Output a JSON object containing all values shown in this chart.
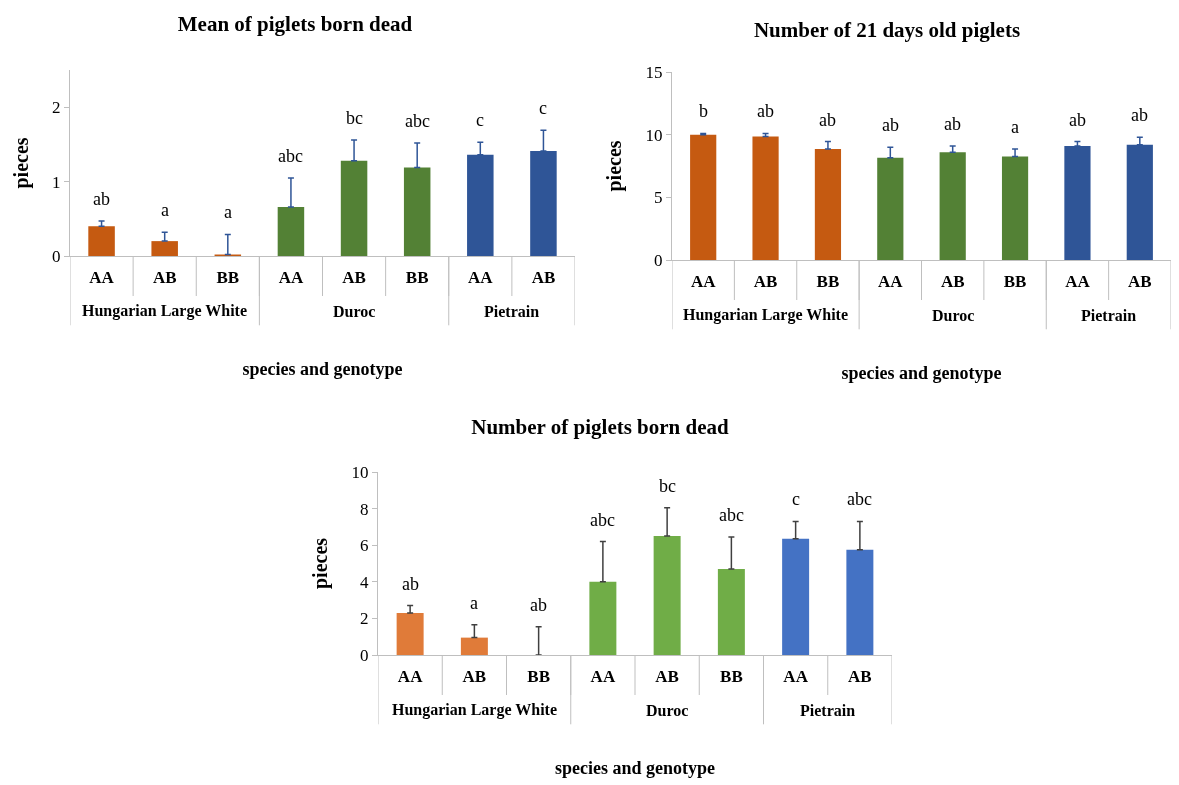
{
  "chart_data": [
    {
      "type": "bar",
      "title": "Mean of piglets born dead",
      "xlabel": "species and genotype",
      "ylabel": "pieces",
      "categories": [
        "AA",
        "AB",
        "BB",
        "AA",
        "AB",
        "BB",
        "AA",
        "AB"
      ],
      "values": [
        0.4,
        0.2,
        0.02,
        0.66,
        1.28,
        1.19,
        1.36,
        1.41
      ],
      "errors": [
        [
          0.4,
          0.47
        ],
        [
          0.2,
          0.32
        ],
        [
          0.02,
          0.29
        ],
        [
          0.66,
          1.05
        ],
        [
          1.28,
          1.56
        ],
        [
          1.19,
          1.52
        ],
        [
          1.36,
          1.53
        ],
        [
          1.41,
          1.69
        ]
      ],
      "value_labels": [
        "ab",
        "a",
        "a",
        "abc",
        "bc",
        "abc",
        "c",
        "c"
      ],
      "colors": [
        "#c55a11",
        "#c55a11",
        "#c55a11",
        "#538135",
        "#538135",
        "#538135",
        "#2f5597",
        "#2f5597"
      ],
      "annotations": [
        "Hungarian Large White",
        "Duroc",
        "Pietrain"
      ],
      "ylim": [
        0,
        2.5
      ],
      "yticks": [
        0,
        1,
        2
      ],
      "grid": false
    },
    {
      "type": "bar",
      "title": "Number of 21 days old piglets",
      "xlabel": "species and genotype",
      "ylabel": "pieces",
      "categories": [
        "AA",
        "AB",
        "BB",
        "AA",
        "AB",
        "BB",
        "AA",
        "AB"
      ],
      "values": [
        10.0,
        9.85,
        8.85,
        8.15,
        8.6,
        8.25,
        9.1,
        9.2
      ],
      "errors": [
        [
          10.0,
          10.1
        ],
        [
          9.85,
          10.1
        ],
        [
          8.85,
          9.45
        ],
        [
          8.15,
          9.0
        ],
        [
          8.6,
          9.1
        ],
        [
          8.25,
          8.85
        ],
        [
          9.1,
          9.45
        ],
        [
          9.2,
          9.8
        ]
      ],
      "value_labels": [
        "b",
        "ab",
        "ab",
        "ab",
        "ab",
        "a",
        "ab",
        "ab"
      ],
      "colors": [
        "#c55a11",
        "#c55a11",
        "#c55a11",
        "#538135",
        "#538135",
        "#538135",
        "#2f5597",
        "#2f5597"
      ],
      "annotations": [
        "Hungarian Large White",
        "Duroc",
        "Pietrain"
      ],
      "ylim": [
        0,
        15
      ],
      "yticks": [
        0,
        5,
        10,
        15
      ],
      "grid": false
    },
    {
      "type": "bar",
      "title": "Number of piglets born dead",
      "xlabel": "species and genotype",
      "ylabel": "pieces",
      "categories": [
        "AA",
        "AB",
        "BB",
        "AA",
        "AB",
        "BB",
        "AA",
        "AB"
      ],
      "values": [
        2.3,
        0.95,
        0,
        4.0,
        6.5,
        4.7,
        6.35,
        5.75
      ],
      "errors": [
        [
          2.3,
          2.7
        ],
        [
          0.95,
          1.65
        ],
        [
          0,
          1.55
        ],
        [
          4.0,
          6.2
        ],
        [
          6.5,
          8.05
        ],
        [
          4.7,
          6.45
        ],
        [
          6.35,
          7.3
        ],
        [
          5.75,
          7.3
        ]
      ],
      "value_labels": [
        "ab",
        "a",
        "ab",
        "abc",
        "bc",
        "abc",
        "c",
        "abc"
      ],
      "colors": [
        "#e07b39",
        "#e07b39",
        "#e07b39",
        "#70ad47",
        "#70ad47",
        "#70ad47",
        "#4472c4",
        "#4472c4"
      ],
      "annotations": [
        "Hungarian Large White",
        "Duroc",
        "Pietrain"
      ],
      "ylim": [
        0,
        10
      ],
      "yticks": [
        0,
        2,
        4,
        6,
        8,
        10
      ],
      "grid": false
    }
  ]
}
